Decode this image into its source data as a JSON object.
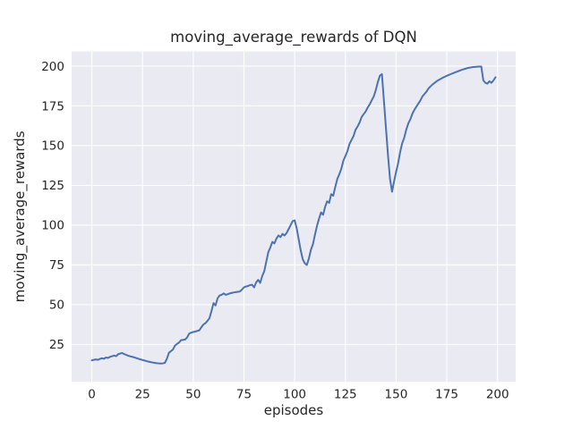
{
  "figure": {
    "background": "#ffffff"
  },
  "chart_data": {
    "type": "line",
    "title": "moving_average_rewards of DQN",
    "xlabel": "episodes",
    "ylabel": "moving_average_rewards",
    "xlim": [
      -9.95,
      208.95
    ],
    "ylim": [
      1.5,
      209.2
    ],
    "x_ticks": [
      0,
      25,
      50,
      75,
      100,
      125,
      150,
      175,
      200
    ],
    "y_ticks": [
      25,
      50,
      75,
      100,
      125,
      150,
      175,
      200
    ],
    "grid": true,
    "legend_position": "none",
    "plot_bg_color": "#eaeaf2",
    "grid_color": "#ffffff",
    "text_color": "#262626",
    "series": [
      {
        "name": "DQN moving average rewards",
        "color": "#4c72b0",
        "line_width": 2,
        "points": [
          [
            0,
            15
          ],
          [
            1,
            15.3
          ],
          [
            2,
            15.6
          ],
          [
            3,
            15.3
          ],
          [
            4,
            15.9
          ],
          [
            5,
            16.3
          ],
          [
            6,
            16
          ],
          [
            7,
            16.8
          ],
          [
            8,
            16.5
          ],
          [
            9,
            17.2
          ],
          [
            10,
            17.6
          ],
          [
            11,
            18
          ],
          [
            12,
            17.6
          ],
          [
            13,
            18.9
          ],
          [
            14,
            19.3
          ],
          [
            15,
            19.6
          ],
          [
            16,
            18.9
          ],
          [
            17,
            18.4
          ],
          [
            18,
            17.9
          ],
          [
            19,
            17.5
          ],
          [
            20,
            17.2
          ],
          [
            21,
            16.8
          ],
          [
            22,
            16.4
          ],
          [
            23,
            16
          ],
          [
            24,
            15.6
          ],
          [
            25,
            15.2
          ],
          [
            26,
            14.9
          ],
          [
            27,
            14.5
          ],
          [
            28,
            14.2
          ],
          [
            29,
            13.9
          ],
          [
            30,
            13.6
          ],
          [
            31,
            13.4
          ],
          [
            32,
            13.2
          ],
          [
            33,
            13.1
          ],
          [
            34,
            13
          ],
          [
            35,
            13.1
          ],
          [
            36,
            13.4
          ],
          [
            37,
            16
          ],
          [
            38,
            19.7
          ],
          [
            39,
            20.8
          ],
          [
            40,
            21.8
          ],
          [
            41,
            24.3
          ],
          [
            42,
            25.3
          ],
          [
            43,
            26.2
          ],
          [
            44,
            27.7
          ],
          [
            45,
            27.9
          ],
          [
            46,
            28.1
          ],
          [
            47,
            29.4
          ],
          [
            48,
            31.8
          ],
          [
            49,
            32.4
          ],
          [
            50,
            32.8
          ],
          [
            51,
            33.1
          ],
          [
            52,
            33.5
          ],
          [
            53,
            33.9
          ],
          [
            54,
            35.8
          ],
          [
            55,
            37.5
          ],
          [
            56,
            38.4
          ],
          [
            57,
            39.8
          ],
          [
            58,
            41.5
          ],
          [
            59,
            46
          ],
          [
            60,
            51
          ],
          [
            61,
            49.5
          ],
          [
            62,
            54
          ],
          [
            63,
            55.8
          ],
          [
            64,
            56.2
          ],
          [
            65,
            57.1
          ],
          [
            66,
            56.2
          ],
          [
            67,
            56.6
          ],
          [
            68,
            57.1
          ],
          [
            69,
            57.4
          ],
          [
            70,
            57.7
          ],
          [
            71,
            57.9
          ],
          [
            72,
            58.1
          ],
          [
            73,
            58.3
          ],
          [
            74,
            59.5
          ],
          [
            75,
            60.9
          ],
          [
            76,
            61.4
          ],
          [
            77,
            61.8
          ],
          [
            78,
            62.3
          ],
          [
            79,
            62.5
          ],
          [
            80,
            60.9
          ],
          [
            81,
            64
          ],
          [
            82,
            65.6
          ],
          [
            83,
            63.7
          ],
          [
            84,
            68
          ],
          [
            85,
            71
          ],
          [
            86,
            77
          ],
          [
            87,
            83
          ],
          [
            88,
            86
          ],
          [
            89,
            89.5
          ],
          [
            90,
            88.5
          ],
          [
            91,
            91.5
          ],
          [
            92,
            93.5
          ],
          [
            93,
            92.5
          ],
          [
            94,
            94.5
          ],
          [
            95,
            93.5
          ],
          [
            96,
            95
          ],
          [
            97,
            97.5
          ],
          [
            98,
            100
          ],
          [
            99,
            102.5
          ],
          [
            100,
            103
          ],
          [
            101,
            98
          ],
          [
            102,
            91
          ],
          [
            103,
            84
          ],
          [
            104,
            78.5
          ],
          [
            105,
            76
          ],
          [
            106,
            75
          ],
          [
            107,
            79
          ],
          [
            108,
            84.5
          ],
          [
            109,
            88
          ],
          [
            110,
            94
          ],
          [
            111,
            99.5
          ],
          [
            112,
            104
          ],
          [
            113,
            108
          ],
          [
            114,
            106.5
          ],
          [
            115,
            111.5
          ],
          [
            116,
            115
          ],
          [
            117,
            114
          ],
          [
            118,
            119.5
          ],
          [
            119,
            118.5
          ],
          [
            120,
            124
          ],
          [
            121,
            129
          ],
          [
            122,
            132
          ],
          [
            123,
            135.5
          ],
          [
            124,
            140.5
          ],
          [
            125,
            143.5
          ],
          [
            126,
            146.5
          ],
          [
            127,
            151
          ],
          [
            128,
            153.5
          ],
          [
            129,
            156
          ],
          [
            130,
            160
          ],
          [
            131,
            162
          ],
          [
            132,
            164.5
          ],
          [
            133,
            168
          ],
          [
            134,
            169.8
          ],
          [
            135,
            171.5
          ],
          [
            136,
            174
          ],
          [
            137,
            176
          ],
          [
            138,
            178.5
          ],
          [
            139,
            181
          ],
          [
            140,
            185
          ],
          [
            141,
            190
          ],
          [
            142,
            194
          ],
          [
            143,
            195
          ],
          [
            144,
            178
          ],
          [
            145,
            161
          ],
          [
            146,
            144
          ],
          [
            147,
            129
          ],
          [
            148,
            121
          ],
          [
            149,
            127.5
          ],
          [
            150,
            133.5
          ],
          [
            151,
            139
          ],
          [
            152,
            146
          ],
          [
            153,
            151.5
          ],
          [
            154,
            155
          ],
          [
            155,
            160
          ],
          [
            156,
            164
          ],
          [
            157,
            166.5
          ],
          [
            158,
            170
          ],
          [
            159,
            172.5
          ],
          [
            160,
            174.5
          ],
          [
            161,
            176.5
          ],
          [
            162,
            178.5
          ],
          [
            163,
            181
          ],
          [
            164,
            182.5
          ],
          [
            165,
            184
          ],
          [
            166,
            186
          ],
          [
            167,
            187.3
          ],
          [
            168,
            188.5
          ],
          [
            169,
            189.5
          ],
          [
            170,
            190.5
          ],
          [
            171,
            191.3
          ],
          [
            172,
            192
          ],
          [
            173,
            192.7
          ],
          [
            174,
            193.3
          ],
          [
            175,
            193.9
          ],
          [
            176,
            194.5
          ],
          [
            177,
            195
          ],
          [
            178,
            195.5
          ],
          [
            179,
            196
          ],
          [
            180,
            196.5
          ],
          [
            181,
            197
          ],
          [
            182,
            197.5
          ],
          [
            183,
            197.9
          ],
          [
            184,
            198.3
          ],
          [
            185,
            198.7
          ],
          [
            186,
            199
          ],
          [
            187,
            199.2
          ],
          [
            188,
            199.4
          ],
          [
            189,
            199.5
          ],
          [
            190,
            199.6
          ],
          [
            191,
            199.7
          ],
          [
            192,
            199.7
          ],
          [
            193,
            191
          ],
          [
            194,
            189.5
          ],
          [
            195,
            189
          ],
          [
            196,
            190.5
          ],
          [
            197,
            189.5
          ],
          [
            198,
            191
          ],
          [
            199,
            193
          ]
        ]
      }
    ]
  }
}
